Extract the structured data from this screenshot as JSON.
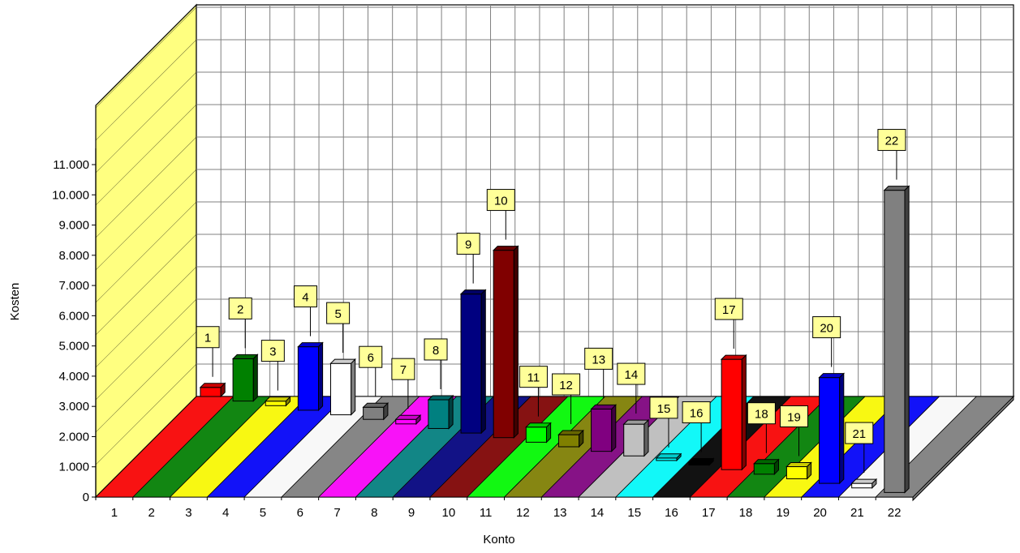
{
  "chart_data": {
    "type": "bar",
    "style": "3d",
    "xlabel": "Konto",
    "ylabel": "Kosten",
    "categories": [
      "1",
      "2",
      "3",
      "4",
      "5",
      "6",
      "7",
      "8",
      "9",
      "10",
      "11",
      "12",
      "13",
      "14",
      "15",
      "16",
      "17",
      "18",
      "19",
      "20",
      "21",
      "22"
    ],
    "y_ticks": [
      "0",
      "1.000",
      "2.000",
      "3.000",
      "4.000",
      "5.000",
      "6.000",
      "7.000",
      "8.000",
      "9.000",
      "10.000",
      "11.000"
    ],
    "ylim": [
      0,
      11000
    ],
    "grid": true,
    "legend": "none",
    "data_labels": [
      "1",
      "2",
      "3",
      "4",
      "5",
      "6",
      "7",
      "8",
      "9",
      "10",
      "11",
      "12",
      "13",
      "14",
      "15",
      "16",
      "17",
      "18",
      "19",
      "20",
      "21",
      "22"
    ],
    "series": [
      {
        "values": [
          300,
          1400,
          150,
          2100,
          1700,
          400,
          150,
          950,
          4600,
          6200,
          500,
          400,
          1400,
          1050,
          50,
          0,
          3650,
          350,
          400,
          3500,
          150,
          10000
        ]
      }
    ],
    "colors": [
      "#ff0000",
      "#008000",
      "#ffff00",
      "#0000ff",
      "#ffffff",
      "#808080",
      "#ff00ff",
      "#008080",
      "#000080",
      "#800000",
      "#00ff00",
      "#808000",
      "#800080",
      "#c0c0c0",
      "#00ffff",
      "#000000",
      "#ff0000",
      "#008000",
      "#ffff00",
      "#0000ff",
      "#ffffff",
      "#808080"
    ],
    "wall_color": "#ffff80",
    "floor_color": "#c0c0c0",
    "label_box_color": "#ffff99"
  }
}
